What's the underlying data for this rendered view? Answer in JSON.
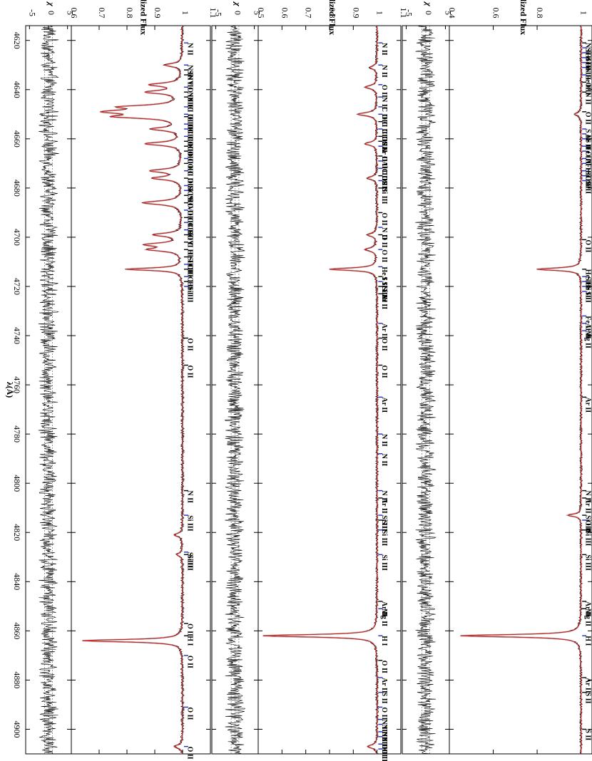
{
  "chart_data": [
    {
      "type": "line",
      "panel": "top",
      "title": "",
      "xlabel": "λ(Å)",
      "ylabel": "Normalized Flux",
      "residual_label": "χ",
      "xlim": [
        4614,
        4910
      ],
      "ylim": [
        0.6,
        1.1
      ],
      "residual_ylim": [
        -6,
        6
      ],
      "x_ticks": [
        4620,
        4640,
        4660,
        4680,
        4700,
        4720,
        4740,
        4760,
        4780,
        4800,
        4820,
        4840,
        4860,
        4880,
        4900
      ],
      "y_ticks": [
        0.6,
        0.7,
        0.8,
        0.9,
        1,
        1.1
      ],
      "residual_ticks": [
        -5,
        0,
        5
      ],
      "colors": {
        "observed": "#000000",
        "model": "#d62020",
        "masked": "#bdbdbd",
        "marker_blue": "#1a2ecc",
        "marker_black": "#000000"
      },
      "absorption_lines": [
        {
          "wl": 4864.0,
          "depth": 0.36,
          "w": 0.6
        },
        {
          "wl": 4649.0,
          "depth": 0.24,
          "w": 1.0
        },
        {
          "wl": 4651.0,
          "depth": 0.2,
          "w": 0.8
        },
        {
          "wl": 4647.0,
          "depth": 0.18,
          "w": 0.8
        },
        {
          "wl": 4713.0,
          "depth": 0.2,
          "w": 0.6
        },
        {
          "wl": 4662.0,
          "depth": 0.13,
          "w": 0.8
        },
        {
          "wl": 4638.0,
          "depth": 0.11,
          "w": 0.8
        },
        {
          "wl": 4641.0,
          "depth": 0.12,
          "w": 0.8
        },
        {
          "wl": 4656.0,
          "depth": 0.1,
          "w": 0.8
        },
        {
          "wl": 4673.0,
          "depth": 0.11,
          "w": 0.8
        },
        {
          "wl": 4676.0,
          "depth": 0.1,
          "w": 0.8
        },
        {
          "wl": 4686.0,
          "depth": 0.14,
          "w": 0.9
        },
        {
          "wl": 4699.0,
          "depth": 0.1,
          "w": 0.8
        },
        {
          "wl": 4703.0,
          "depth": 0.12,
          "w": 0.8
        },
        {
          "wl": 4705.0,
          "depth": 0.11,
          "w": 0.8
        },
        {
          "wl": 4630.0,
          "depth": 0.06,
          "w": 0.8
        },
        {
          "wl": 4821.0,
          "depth": 0.03,
          "w": 0.8
        },
        {
          "wl": 4829.0,
          "depth": 0.02,
          "w": 0.8
        },
        {
          "wl": 4907.0,
          "depth": 0.03,
          "w": 0.8
        }
      ],
      "line_ids": [
        {
          "wl": 4621,
          "label": "N II",
          "color": "blue"
        },
        {
          "wl": 4630,
          "label": "N II",
          "color": "blue"
        },
        {
          "wl": 4632,
          "label": "Si IV",
          "color": "black"
        },
        {
          "wl": 4634,
          "label": "N III",
          "color": "black"
        },
        {
          "wl": 4639,
          "label": "O II",
          "color": "blue"
        },
        {
          "wl": 4641,
          "label": "N III",
          "color": "black"
        },
        {
          "wl": 4643,
          "label": "N III",
          "color": "black"
        },
        {
          "wl": 4647,
          "label": "C III",
          "color": "blue"
        },
        {
          "wl": 4650,
          "label": "O III",
          "color": "blue"
        },
        {
          "wl": 4651,
          "label": "C III",
          "color": "black"
        },
        {
          "wl": 4654,
          "label": "C III",
          "color": "blue"
        },
        {
          "wl": 4656,
          "label": "C III",
          "color": "blue"
        },
        {
          "wl": 4659,
          "label": "C III",
          "color": "blue"
        },
        {
          "wl": 4661,
          "label": "O II",
          "color": "black"
        },
        {
          "wl": 4663,
          "label": "C III",
          "color": "black"
        },
        {
          "wl": 4665,
          "label": "O II",
          "color": "black"
        },
        {
          "wl": 4668,
          "label": "C III",
          "color": "blue"
        },
        {
          "wl": 4670,
          "label": "O II",
          "color": "black"
        },
        {
          "wl": 4673,
          "label": "C III",
          "color": "blue"
        },
        {
          "wl": 4676,
          "label": "O II",
          "color": "black"
        },
        {
          "wl": 4679,
          "label": "Si IV",
          "color": "blue"
        },
        {
          "wl": 4681,
          "label": "C III",
          "color": "blue"
        },
        {
          "wl": 4683,
          "label": "Si IV",
          "color": "black"
        },
        {
          "wl": 4686,
          "label": "O III",
          "color": "black"
        },
        {
          "wl": 4689,
          "label": "O III",
          "color": "blue"
        },
        {
          "wl": 4692,
          "label": "C III",
          "color": "black"
        },
        {
          "wl": 4694,
          "label": "C III",
          "color": "blue"
        },
        {
          "wl": 4697,
          "label": "Si IV",
          "color": "blue"
        },
        {
          "wl": 4699,
          "label": "O II",
          "color": "black"
        },
        {
          "wl": 4702,
          "label": "C III",
          "color": "black"
        },
        {
          "wl": 4705,
          "label": "He II",
          "color": "black"
        },
        {
          "wl": 4708,
          "label": "Si III",
          "color": "black"
        },
        {
          "wl": 4711,
          "label": "O II",
          "color": "blue"
        },
        {
          "wl": 4713,
          "label": "He I",
          "color": "black"
        },
        {
          "wl": 4716,
          "label": "O II",
          "color": "blue"
        },
        {
          "wl": 4718,
          "label": "He I",
          "color": "black"
        },
        {
          "wl": 4720,
          "label": "Si III",
          "color": "blue"
        },
        {
          "wl": 4741,
          "label": "O II",
          "color": "black"
        },
        {
          "wl": 4752,
          "label": "O II",
          "color": "black"
        },
        {
          "wl": 4803,
          "label": "N II",
          "color": "black"
        },
        {
          "wl": 4813,
          "label": "Si III",
          "color": "blue"
        },
        {
          "wl": 4828,
          "label": "Si III",
          "color": "blue"
        },
        {
          "wl": 4829,
          "label": "Si III",
          "color": "black"
        },
        {
          "wl": 4857,
          "label": "O II",
          "color": "black"
        },
        {
          "wl": 4862,
          "label": "H I",
          "color": "black"
        },
        {
          "wl": 4870,
          "label": "O II",
          "color": "blue"
        },
        {
          "wl": 4891,
          "label": "O II",
          "color": "blue"
        },
        {
          "wl": 4907,
          "label": "O II",
          "color": "blue"
        }
      ]
    },
    {
      "type": "line",
      "panel": "middle",
      "title": "",
      "xlabel": "λ(Å)",
      "ylabel": "Normalized Flux",
      "residual_label": "χ",
      "xlim": [
        4614,
        4910
      ],
      "ylim": [
        0.5,
        1.1
      ],
      "residual_ylim": [
        -6,
        6
      ],
      "x_ticks": [
        4620,
        4640,
        4660,
        4680,
        4700,
        4720,
        4740,
        4760,
        4780,
        4800,
        4820,
        4840,
        4860,
        4880,
        4900
      ],
      "y_ticks": [
        0.5,
        0.6,
        0.7,
        0.8,
        0.9,
        1,
        1.1
      ],
      "residual_ticks": [
        -5,
        0,
        5
      ],
      "colors": {
        "observed": "#000000",
        "model": "#d62020",
        "masked": "#bdbdbd",
        "marker_blue": "#1a2ecc",
        "marker_black": "#000000"
      },
      "absorption_lines": [
        {
          "wl": 4862.0,
          "depth": 0.48,
          "w": 0.6
        },
        {
          "wl": 4713.0,
          "depth": 0.2,
          "w": 0.6
        },
        {
          "wl": 4650.0,
          "depth": 0.08,
          "w": 0.8
        },
        {
          "wl": 4639.0,
          "depth": 0.05,
          "w": 0.8
        },
        {
          "wl": 4631.0,
          "depth": 0.03,
          "w": 0.8
        },
        {
          "wl": 4662.0,
          "depth": 0.05,
          "w": 0.8
        },
        {
          "wl": 4676.0,
          "depth": 0.04,
          "w": 0.8
        },
        {
          "wl": 4699.0,
          "depth": 0.04,
          "w": 0.8
        },
        {
          "wl": 4705.0,
          "depth": 0.05,
          "w": 0.8
        },
        {
          "wl": 4907.0,
          "depth": 0.04,
          "w": 0.8
        }
      ],
      "line_ids": [
        {
          "wl": 4621,
          "label": "N II",
          "color": "blue"
        },
        {
          "wl": 4630,
          "label": "N II",
          "color": "blue"
        },
        {
          "wl": 4638,
          "label": "O II",
          "color": "blue"
        },
        {
          "wl": 4643,
          "label": "N II",
          "color": "blue"
        },
        {
          "wl": 4647,
          "label": "C III",
          "color": "blue"
        },
        {
          "wl": 4650,
          "label": "O II",
          "color": "blue"
        },
        {
          "wl": 4653,
          "label": "C III",
          "color": "black"
        },
        {
          "wl": 4656,
          "label": "C III",
          "color": "blue"
        },
        {
          "wl": 4659,
          "label": "O II",
          "color": "black"
        },
        {
          "wl": 4661,
          "label": "S II",
          "color": "black"
        },
        {
          "wl": 4663,
          "label": "Ar II",
          "color": "blue"
        },
        {
          "wl": 4667,
          "label": "O II",
          "color": "black"
        },
        {
          "wl": 4669,
          "label": "Al II",
          "color": "blue"
        },
        {
          "wl": 4672,
          "label": "C III",
          "color": "blue"
        },
        {
          "wl": 4675,
          "label": "O II",
          "color": "black"
        },
        {
          "wl": 4677,
          "label": "S II",
          "color": "blue"
        },
        {
          "wl": 4680,
          "label": "Si III",
          "color": "black"
        },
        {
          "wl": 4690,
          "label": "O II",
          "color": "black"
        },
        {
          "wl": 4696,
          "label": "N II",
          "color": "blue"
        },
        {
          "wl": 4699,
          "label": "O II",
          "color": "black"
        },
        {
          "wl": 4705,
          "label": "O II",
          "color": "blue"
        },
        {
          "wl": 4712,
          "label": "He I",
          "color": "blue"
        },
        {
          "wl": 4716,
          "label": "S II",
          "color": "black"
        },
        {
          "wl": 4718,
          "label": "Si III",
          "color": "blue"
        },
        {
          "wl": 4720,
          "label": "Si III",
          "color": "black"
        },
        {
          "wl": 4723,
          "label": "Ar II",
          "color": "black"
        },
        {
          "wl": 4735,
          "label": "Ar II",
          "color": "blue"
        },
        {
          "wl": 4741,
          "label": "O II",
          "color": "black"
        },
        {
          "wl": 4752,
          "label": "O II",
          "color": "black"
        },
        {
          "wl": 4765,
          "label": "Ar II",
          "color": "blue"
        },
        {
          "wl": 4780,
          "label": "N II",
          "color": "blue"
        },
        {
          "wl": 4788,
          "label": "N II",
          "color": "blue"
        },
        {
          "wl": 4803,
          "label": "N II",
          "color": "blue"
        },
        {
          "wl": 4806,
          "label": "Ar II",
          "color": "black"
        },
        {
          "wl": 4813,
          "label": "Si III",
          "color": "blue"
        },
        {
          "wl": 4815,
          "label": "S II",
          "color": "black"
        },
        {
          "wl": 4819,
          "label": "Si III",
          "color": "blue"
        },
        {
          "wl": 4829,
          "label": "Si III",
          "color": "blue"
        },
        {
          "wl": 4848,
          "label": "Ar II",
          "color": "black"
        },
        {
          "wl": 4851,
          "label": "Mg II",
          "color": "blue"
        },
        {
          "wl": 4862,
          "label": "H I",
          "color": "blue"
        },
        {
          "wl": 4872,
          "label": "O II",
          "color": "black"
        },
        {
          "wl": 4879,
          "label": "Ar II",
          "color": "blue"
        },
        {
          "wl": 4885,
          "label": "S II",
          "color": "blue"
        },
        {
          "wl": 4891,
          "label": "O II",
          "color": "blue"
        },
        {
          "wl": 4896,
          "label": "N II",
          "color": "blue"
        },
        {
          "wl": 4898,
          "label": "N III",
          "color": "blue"
        },
        {
          "wl": 4901,
          "label": "N III",
          "color": "blue"
        },
        {
          "wl": 4903,
          "label": "N III",
          "color": "blue"
        },
        {
          "wl": 4906,
          "label": "O II",
          "color": "blue"
        },
        {
          "wl": 4908,
          "label": "O II",
          "color": "blue"
        }
      ]
    },
    {
      "type": "line",
      "panel": "bottom",
      "title": "",
      "xlabel": "λ(Å)",
      "ylabel": "Normalized Flux",
      "residual_label": "χ",
      "xlim": [
        4614,
        4910
      ],
      "ylim": [
        0.4,
        1.05
      ],
      "residual_ylim": [
        -6,
        6
      ],
      "x_ticks": [
        4620,
        4640,
        4660,
        4680,
        4700,
        4720,
        4740,
        4760,
        4780,
        4800,
        4820,
        4840,
        4860,
        4880,
        4900
      ],
      "y_ticks": [
        0.4,
        0.6,
        0.8,
        1
      ],
      "residual_ticks": [
        -5,
        0,
        5
      ],
      "colors": {
        "observed": "#000000",
        "model": "#d62020",
        "masked": "#bdbdbd",
        "marker_blue": "#1a2ecc",
        "marker_black": "#000000"
      },
      "absorption_lines": [
        {
          "wl": 4862.0,
          "depth": 0.55,
          "w": 0.6
        },
        {
          "wl": 4713.0,
          "depth": 0.2,
          "w": 0.6
        },
        {
          "wl": 4650.0,
          "depth": 0.03,
          "w": 0.8
        },
        {
          "wl": 4813.0,
          "depth": 0.06,
          "w": 0.6
        }
      ],
      "line_ids": [
        {
          "wl": 4621,
          "label": "N II",
          "color": "black"
        },
        {
          "wl": 4623,
          "label": "Si II",
          "color": "blue"
        },
        {
          "wl": 4625,
          "label": "Fe II",
          "color": "blue"
        },
        {
          "wl": 4627,
          "label": "Si II",
          "color": "blue"
        },
        {
          "wl": 4629,
          "label": "Fe II",
          "color": "blue"
        },
        {
          "wl": 4631,
          "label": "N II",
          "color": "blue"
        },
        {
          "wl": 4634,
          "label": "Fe II",
          "color": "blue"
        },
        {
          "wl": 4637,
          "label": "O II",
          "color": "black"
        },
        {
          "wl": 4641,
          "label": "N II",
          "color": "black"
        },
        {
          "wl": 4649,
          "label": "O II",
          "color": "black"
        },
        {
          "wl": 4656,
          "label": "S II",
          "color": "blue"
        },
        {
          "wl": 4658,
          "label": "Ar II",
          "color": "blue"
        },
        {
          "wl": 4660,
          "label": "S II",
          "color": "blue"
        },
        {
          "wl": 4663,
          "label": "Fe II",
          "color": "blue"
        },
        {
          "wl": 4665,
          "label": "O II",
          "color": "blue"
        },
        {
          "wl": 4668,
          "label": "Al II",
          "color": "blue"
        },
        {
          "wl": 4670,
          "label": "Fe II",
          "color": "blue"
        },
        {
          "wl": 4673,
          "label": "Si II",
          "color": "blue"
        },
        {
          "wl": 4675,
          "label": "O II",
          "color": "blue"
        },
        {
          "wl": 4677,
          "label": "Si II",
          "color": "blue"
        },
        {
          "wl": 4701,
          "label": "O II",
          "color": "black"
        },
        {
          "wl": 4713,
          "label": "He I",
          "color": "black"
        },
        {
          "wl": 4716,
          "label": "S II",
          "color": "blue"
        },
        {
          "wl": 4718,
          "label": "He I",
          "color": "blue"
        },
        {
          "wl": 4720,
          "label": "S II",
          "color": "blue"
        },
        {
          "wl": 4722,
          "label": "S II",
          "color": "blue"
        },
        {
          "wl": 4732,
          "label": "Fe II",
          "color": "blue"
        },
        {
          "wl": 4735,
          "label": "Ar II",
          "color": "blue"
        },
        {
          "wl": 4738,
          "label": "Mg II",
          "color": "blue"
        },
        {
          "wl": 4765,
          "label": "Ar II",
          "color": "black"
        },
        {
          "wl": 4803,
          "label": "N II",
          "color": "black"
        },
        {
          "wl": 4806,
          "label": "Ar II",
          "color": "black"
        },
        {
          "wl": 4813,
          "label": "Si III",
          "color": "black"
        },
        {
          "wl": 4815,
          "label": "O II",
          "color": "blue"
        },
        {
          "wl": 4819,
          "label": "Si III",
          "color": "black"
        },
        {
          "wl": 4829,
          "label": "Si III",
          "color": "black"
        },
        {
          "wl": 4848,
          "label": "Ar II",
          "color": "black"
        },
        {
          "wl": 4851,
          "label": "Mg II",
          "color": "black"
        },
        {
          "wl": 4862,
          "label": "H I",
          "color": "blue"
        },
        {
          "wl": 4879,
          "label": "Ar II",
          "color": "black"
        },
        {
          "wl": 4885,
          "label": "S II",
          "color": "black"
        },
        {
          "wl": 4900,
          "label": "S II",
          "color": "black"
        }
      ]
    }
  ]
}
